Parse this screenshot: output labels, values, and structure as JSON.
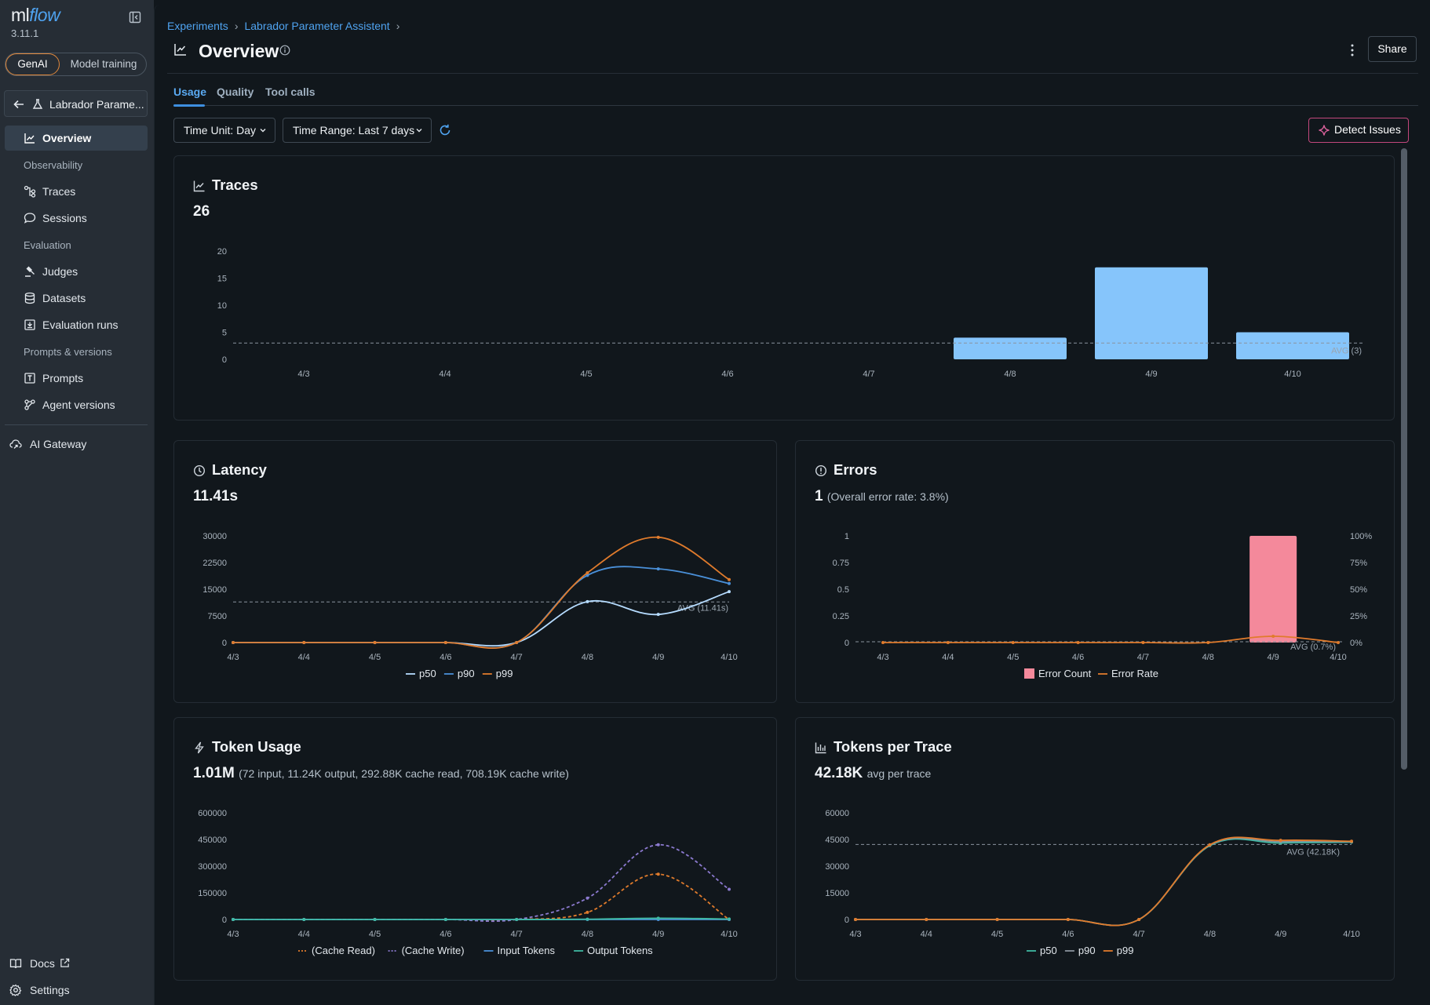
{
  "app": {
    "logo_main": "ml",
    "logo_accent": "flow",
    "version": "3.11.1"
  },
  "mode": {
    "genai": "GenAI",
    "model_training": "Model training"
  },
  "experiment_short": "Labrador Parame...",
  "sidebar": {
    "overview": "Overview",
    "section_observability": "Observability",
    "traces": "Traces",
    "sessions": "Sessions",
    "section_evaluation": "Evaluation",
    "judges": "Judges",
    "datasets": "Datasets",
    "evaluation_runs": "Evaluation runs",
    "section_prompts": "Prompts & versions",
    "prompts": "Prompts",
    "agent_versions": "Agent versions",
    "ai_gateway": "AI Gateway",
    "docs": "Docs",
    "settings": "Settings"
  },
  "breadcrumb": {
    "experiments": "Experiments",
    "experiment": "Labrador Parameter Assistent"
  },
  "page": {
    "title": "Overview",
    "share": "Share"
  },
  "tabs": {
    "usage": "Usage",
    "quality": "Quality",
    "tool_calls": "Tool calls"
  },
  "filters": {
    "time_unit": "Time Unit: Day",
    "time_range": "Time Range: Last 7 days",
    "detect": "Detect Issues"
  },
  "colors": {
    "accent_blue": "#4fa3f0",
    "bar_blue": "#86c5fb",
    "p50": "#b6dcff",
    "p90": "#4a90d9",
    "p99": "#e07b2c",
    "error_bar": "#f4899b",
    "genai_border": "#e0883c",
    "detect_border": "#c2477c",
    "cache_write": "#8c7ad0",
    "output_tokens": "#3fb9a3"
  },
  "cards": {
    "traces": {
      "title": "Traces",
      "value": "26"
    },
    "latency": {
      "title": "Latency",
      "value": "11.41s"
    },
    "errors": {
      "title": "Errors",
      "value": "1",
      "sub": "(Overall error rate: 3.8%)"
    },
    "tokens": {
      "title": "Token Usage",
      "value": "1.01M",
      "sub": "(72 input, 11.24K output, 292.88K cache read, 708.19K cache write)"
    },
    "tpt": {
      "title": "Tokens per Trace",
      "value": "42.18K",
      "sub": "avg per trace"
    }
  },
  "chart_data": [
    {
      "id": "traces",
      "type": "bar",
      "categories": [
        "4/3",
        "4/4",
        "4/5",
        "4/6",
        "4/7",
        "4/8",
        "4/9",
        "4/10"
      ],
      "values": [
        0,
        0,
        0,
        0,
        0,
        4,
        17,
        5
      ],
      "ylim": [
        0,
        20
      ],
      "yticks": [
        "0",
        "5",
        "10",
        "15",
        "20"
      ],
      "avg": 3,
      "avg_label": "AVG (3)"
    },
    {
      "id": "latency",
      "type": "line",
      "categories": [
        "4/3",
        "4/4",
        "4/5",
        "4/6",
        "4/7",
        "4/8",
        "4/9",
        "4/10"
      ],
      "ylim": [
        0,
        30000
      ],
      "yticks": [
        "0",
        "7500",
        "15000",
        "22500",
        "30000"
      ],
      "avg": 11410,
      "avg_label": "AVG (11.41s)",
      "series": [
        {
          "name": "p50",
          "values": [
            0,
            0,
            0,
            0,
            0,
            11500,
            7900,
            14300
          ]
        },
        {
          "name": "p90",
          "values": [
            0,
            0,
            0,
            0,
            0,
            18900,
            20700,
            16600
          ]
        },
        {
          "name": "p99",
          "values": [
            0,
            0,
            0,
            0,
            0,
            19600,
            29600,
            17700
          ]
        }
      ]
    },
    {
      "id": "errors",
      "type": "bar+line",
      "categories": [
        "4/3",
        "4/4",
        "4/5",
        "4/6",
        "4/7",
        "4/8",
        "4/9",
        "4/10"
      ],
      "ylim": [
        0,
        1
      ],
      "yticks": [
        "0",
        "0.25",
        "0.5",
        "0.75",
        "1"
      ],
      "y2ticks": [
        "0%",
        "25%",
        "50%",
        "75%",
        "100%"
      ],
      "avg_label": "AVG (0.7%)",
      "series": [
        {
          "name": "Error Count",
          "values": [
            0,
            0,
            0,
            0,
            0,
            0,
            1,
            0
          ]
        },
        {
          "name": "Error Rate",
          "values": [
            0,
            0,
            0,
            0,
            0,
            0,
            5.9,
            0
          ]
        }
      ]
    },
    {
      "id": "tokens",
      "type": "line",
      "categories": [
        "4/3",
        "4/4",
        "4/5",
        "4/6",
        "4/7",
        "4/8",
        "4/9",
        "4/10"
      ],
      "ylim": [
        0,
        600000
      ],
      "yticks": [
        "0",
        "150000",
        "300000",
        "450000",
        "600000"
      ],
      "series": [
        {
          "name": "(Cache Read)",
          "values": [
            0,
            0,
            0,
            0,
            0,
            40000,
            255000,
            0
          ]
        },
        {
          "name": "(Cache Write)",
          "values": [
            0,
            0,
            0,
            0,
            0,
            120000,
            420000,
            170000
          ]
        },
        {
          "name": "Input Tokens",
          "values": [
            0,
            0,
            0,
            0,
            0,
            10,
            40,
            20
          ]
        },
        {
          "name": "Output Tokens",
          "values": [
            0,
            0,
            0,
            0,
            0,
            1500,
            7000,
            2700
          ]
        }
      ]
    },
    {
      "id": "tpt",
      "type": "line",
      "categories": [
        "4/3",
        "4/4",
        "4/5",
        "4/6",
        "4/7",
        "4/8",
        "4/9",
        "4/10"
      ],
      "ylim": [
        0,
        60000
      ],
      "yticks": [
        "0",
        "15000",
        "30000",
        "45000",
        "60000"
      ],
      "avg": 42180,
      "avg_label": "AVG (42.18K)",
      "series": [
        {
          "name": "p50",
          "values": [
            0,
            0,
            0,
            0,
            0,
            41500,
            43000,
            43500
          ]
        },
        {
          "name": "p90",
          "values": [
            0,
            0,
            0,
            0,
            0,
            41800,
            43800,
            43800
          ]
        },
        {
          "name": "p99",
          "values": [
            0,
            0,
            0,
            0,
            0,
            42000,
            44500,
            44000
          ]
        }
      ]
    }
  ]
}
